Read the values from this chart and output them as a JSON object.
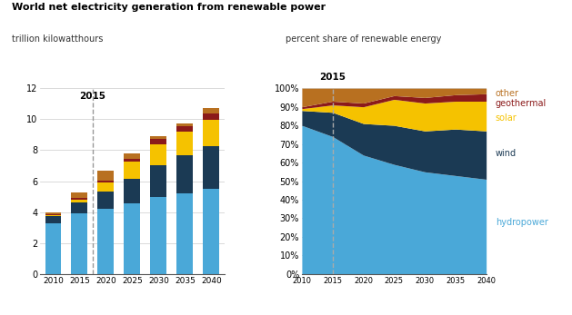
{
  "years": [
    2010,
    2015,
    2020,
    2025,
    2030,
    2035,
    2040
  ],
  "bar_data": {
    "hydropower": [
      3.3,
      3.9,
      4.2,
      4.55,
      5.0,
      5.2,
      5.5
    ],
    "wind": [
      0.45,
      0.7,
      1.1,
      1.6,
      2.0,
      2.5,
      2.75
    ],
    "solar": [
      0.05,
      0.2,
      0.6,
      1.1,
      1.4,
      1.5,
      1.7
    ],
    "geothermal": [
      0.05,
      0.1,
      0.15,
      0.2,
      0.3,
      0.35,
      0.4
    ],
    "other": [
      0.1,
      0.35,
      0.6,
      0.35,
      0.2,
      0.2,
      0.35
    ]
  },
  "area_data": {
    "hydropower": [
      80,
      74,
      64,
      59,
      55,
      53,
      51
    ],
    "wind": [
      8,
      13,
      17,
      21,
      22,
      25,
      26
    ],
    "solar": [
      1,
      4,
      9,
      14,
      15,
      15,
      16
    ],
    "geothermal": [
      1,
      2,
      2,
      2,
      3,
      3.5,
      4
    ],
    "other": [
      10,
      7,
      8,
      4,
      5,
      3.5,
      3
    ]
  },
  "colors": {
    "hydropower": "#4aa8d8",
    "wind": "#1b3a54",
    "solar": "#f5c200",
    "geothermal": "#8b1a1a",
    "other": "#b87020"
  },
  "title_bold": "World net electricity generation from renewable power",
  "subtitle_left": "trillion kilowatthours",
  "subtitle_right": "percent share of renewable energy",
  "ylim_left": [
    0,
    12
  ],
  "yticks_left": [
    0,
    2,
    4,
    6,
    8,
    10,
    12
  ],
  "ylim_right": [
    0,
    100
  ],
  "yticks_right": [
    0,
    10,
    20,
    30,
    40,
    50,
    60,
    70,
    80,
    90,
    100
  ],
  "dashed_year": "2015",
  "layers_order": [
    "hydropower",
    "wind",
    "solar",
    "geothermal",
    "other"
  ],
  "legend_labels": [
    "other",
    "geothermal",
    "solar",
    "wind",
    "hydropower"
  ],
  "legend_colors_keys": [
    "other",
    "geothermal",
    "solar",
    "wind",
    "hydropower"
  ],
  "bg_color": "#ffffff",
  "grid_color": "#cccccc",
  "spine_color": "#555555"
}
